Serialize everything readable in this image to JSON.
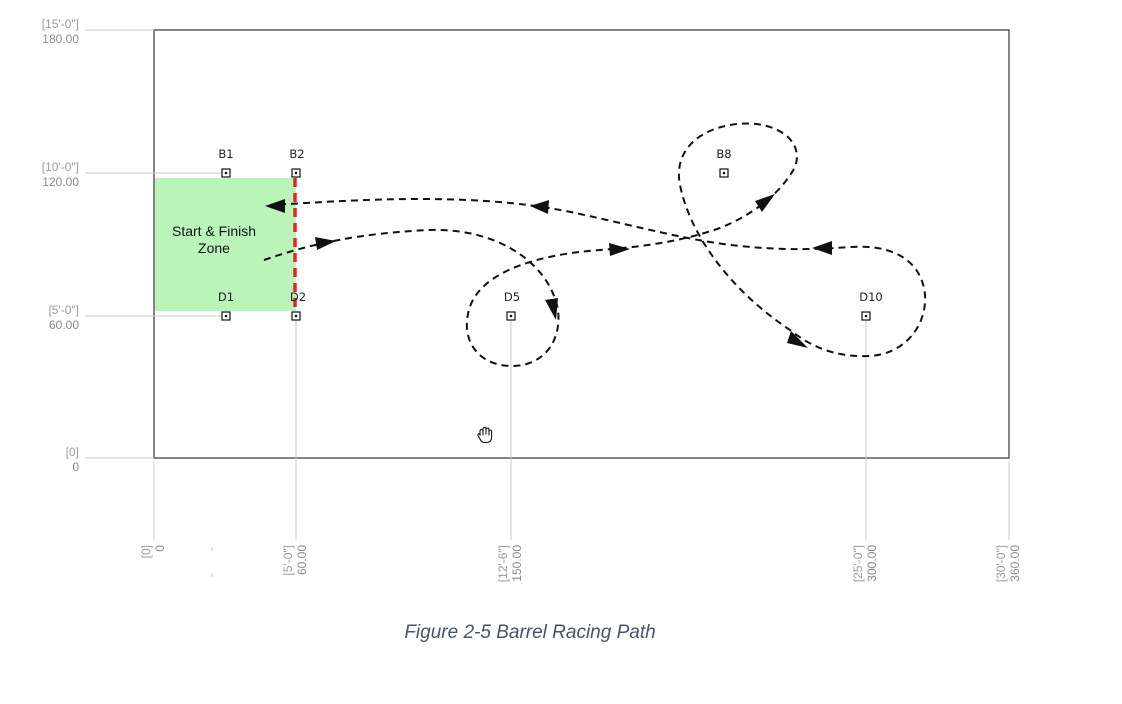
{
  "y_dimensions": [
    {
      "ft": "[15'-0\"]",
      "in": "180.00"
    },
    {
      "ft": "[10'-0\"]",
      "in": "120.00"
    },
    {
      "ft": "[5'-0\"]",
      "in": "60.00"
    },
    {
      "ft": "[0]",
      "in": "0"
    }
  ],
  "x_dimensions": [
    {
      "ft": "[0]",
      "in": "0"
    },
    {
      "ft": "[5'-0\"]",
      "in": "60.00"
    },
    {
      "ft": "[12'-6\"]",
      "in": "150.00"
    },
    {
      "ft": "[25'-0\"]",
      "in": "300.00"
    },
    {
      "ft": "[30'-0\"]",
      "in": "360.00"
    }
  ],
  "markers": [
    {
      "label": "B1"
    },
    {
      "label": "B2"
    },
    {
      "label": "B8"
    },
    {
      "label": "D1"
    },
    {
      "label": "D2"
    },
    {
      "label": "D5"
    },
    {
      "label": "D10"
    }
  ],
  "zone": {
    "line1": "Start & Finish",
    "line2": "Zone",
    "color": "#b9f5b9"
  },
  "finish_line_color": "#e8231d",
  "caption": "Figure 2-5 Barrel Racing Path",
  "caption_color": "#44546a",
  "cursor_icon": "hand-cursor-icon"
}
